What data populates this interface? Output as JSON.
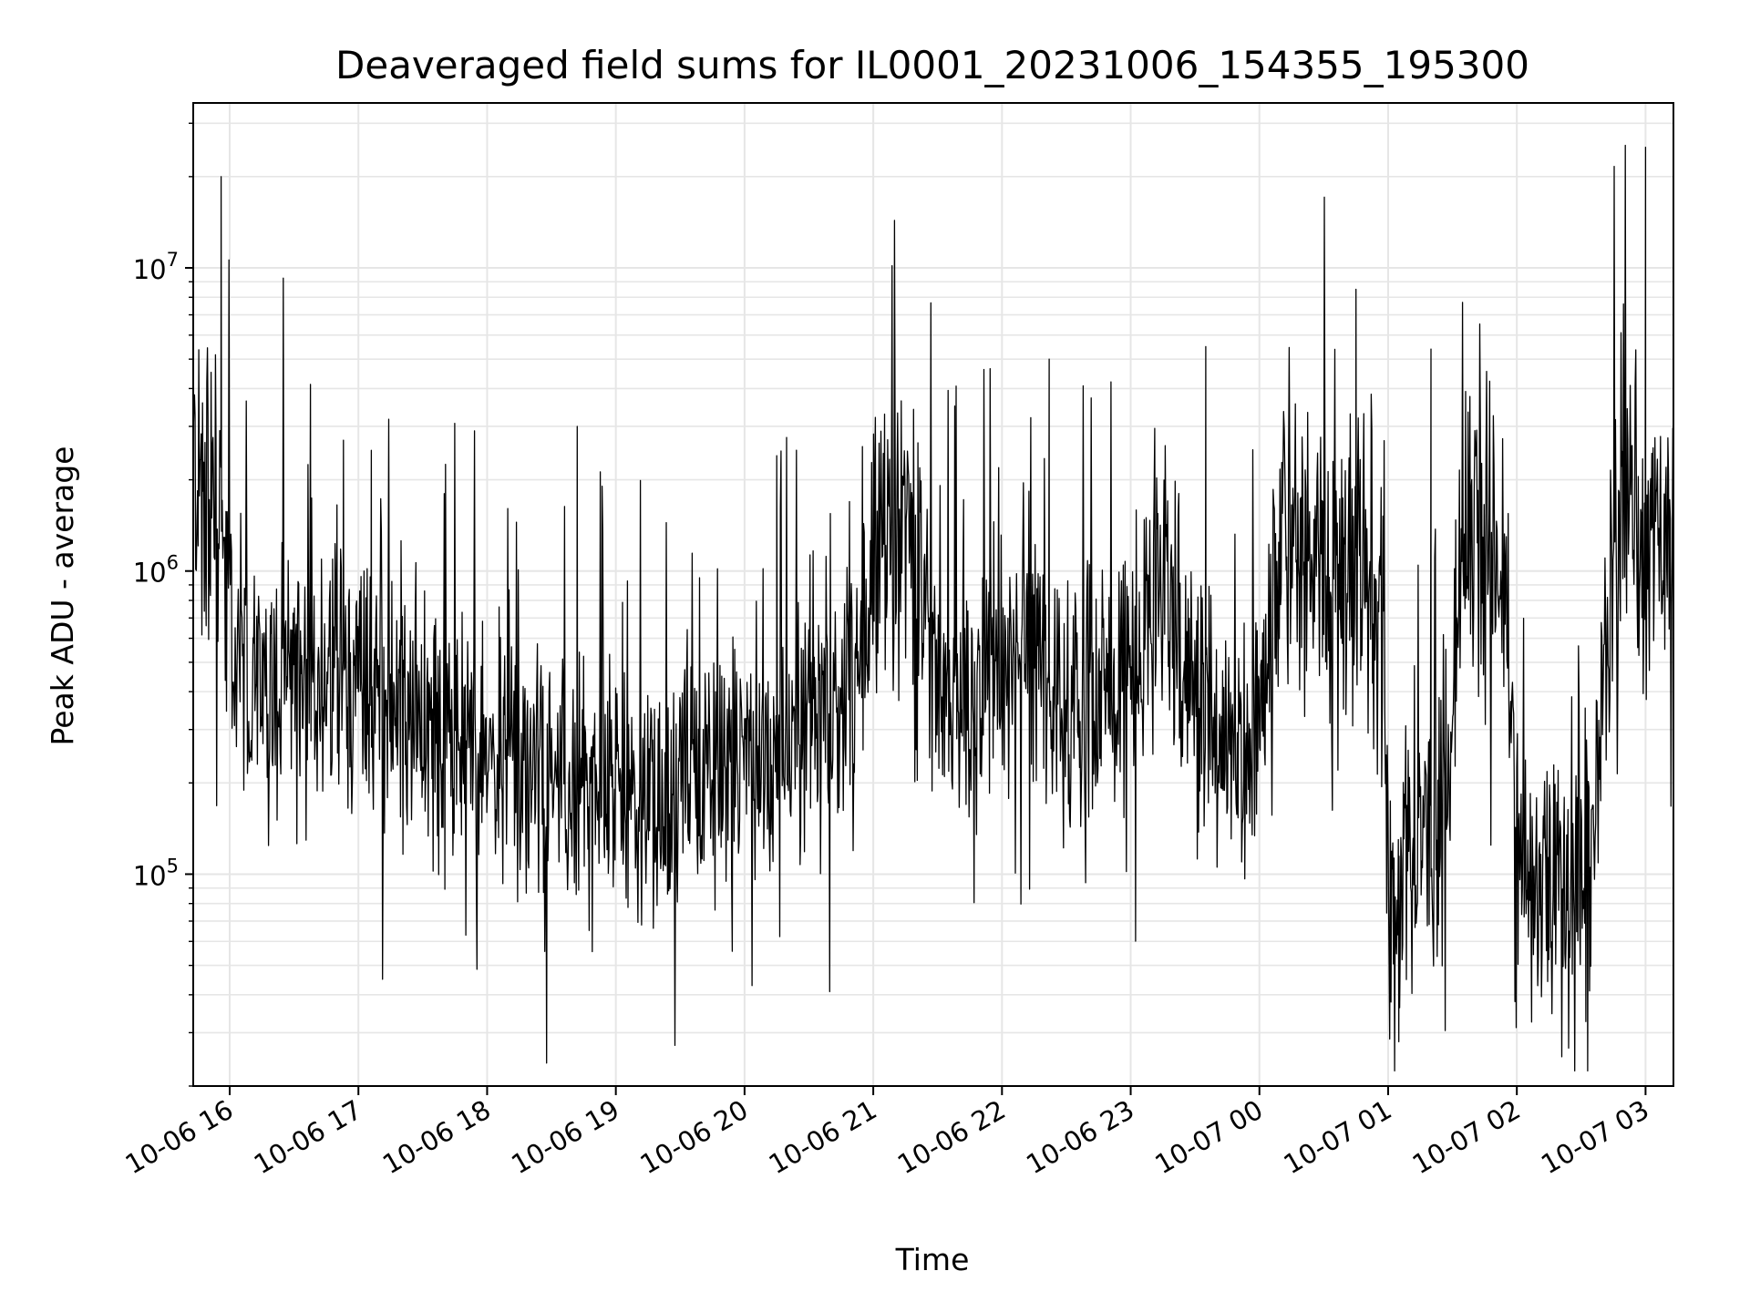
{
  "chart_data": {
    "type": "line",
    "title": "Deaveraged field sums for IL0001_20231006_154355_195300",
    "xlabel": "Time",
    "ylabel": "Peak ADU - average",
    "yscale": "log",
    "ylim": [
      20000,
      35000000
    ],
    "xlim": [
      "2023-10-06 15:43",
      "2023-10-07 03:13"
    ],
    "grid": true,
    "legend": "none",
    "line_color": "#000000",
    "grid_color": "#e6e6e6",
    "x_ticks": [
      "10-06 16",
      "10-06 17",
      "10-06 18",
      "10-06 19",
      "10-06 20",
      "10-06 21",
      "10-06 22",
      "10-06 23",
      "10-07 00",
      "10-07 01",
      "10-07 02",
      "10-07 03"
    ],
    "y_ticks": [
      {
        "base": "10",
        "exp": "5",
        "value": 100000
      },
      {
        "base": "10",
        "exp": "6",
        "value": 1000000
      },
      {
        "base": "10",
        "exp": "7",
        "value": 10000000
      }
    ],
    "series": [
      {
        "x": [
          "2023-10-06 15:43",
          "2023-10-06 15:50",
          "2023-10-06 15:55",
          "2023-10-06 15:58",
          "2023-10-06 16:00",
          "2023-10-06 16:05",
          "2023-10-06 16:15",
          "2023-10-06 16:30",
          "2023-10-06 16:45",
          "2023-10-06 17:00",
          "2023-10-06 17:20",
          "2023-10-06 17:40",
          "2023-10-06 18:00",
          "2023-10-06 18:30",
          "2023-10-06 19:00",
          "2023-10-06 19:30",
          "2023-10-06 20:00",
          "2023-10-06 20:30",
          "2023-10-06 20:50",
          "2023-10-06 21:00",
          "2023-10-06 21:15",
          "2023-10-06 21:30",
          "2023-10-06 21:45",
          "2023-10-06 22:00",
          "2023-10-06 22:15",
          "2023-10-06 22:30",
          "2023-10-06 22:45",
          "2023-10-06 23:00",
          "2023-10-06 23:15",
          "2023-10-06 23:30",
          "2023-10-06 23:45",
          "2023-10-07 00:00",
          "2023-10-07 00:10",
          "2023-10-07 00:20",
          "2023-10-07 00:35",
          "2023-10-07 00:50",
          "2023-10-07 00:58",
          "2023-10-07 01:00",
          "2023-10-07 01:10",
          "2023-10-07 01:25",
          "2023-10-07 01:35",
          "2023-10-07 01:45",
          "2023-10-07 01:55",
          "2023-10-07 02:00",
          "2023-10-07 02:10",
          "2023-10-07 02:25",
          "2023-10-07 02:35",
          "2023-10-07 02:45",
          "2023-10-07 02:55",
          "2023-10-07 03:00",
          "2023-10-07 03:13"
        ],
        "y": [
          2200000,
          2000000,
          1500000,
          1000000,
          600000,
          450000,
          400000,
          450000,
          420000,
          450000,
          350000,
          280000,
          230000,
          200000,
          190000,
          190000,
          230000,
          320000,
          450000,
          1000000,
          1300000,
          450000,
          350000,
          500000,
          700000,
          250000,
          400000,
          500000,
          1000000,
          450000,
          250000,
          300000,
          1300000,
          1400000,
          700000,
          1200000,
          800000,
          70000,
          120000,
          130000,
          1200000,
          1500000,
          700000,
          100000,
          95000,
          100000,
          100000,
          1500000,
          1600000,
          1200000,
          1200000
        ]
      }
    ],
    "spikes": [
      {
        "x": "2023-10-06 15:56",
        "y": 20000000
      },
      {
        "x": "2023-10-06 16:53",
        "y": 2700000
      },
      {
        "x": "2023-10-06 17:06",
        "y": 2500000
      },
      {
        "x": "2023-10-06 18:42",
        "y": 3000000
      },
      {
        "x": "2023-10-06 20:15",
        "y": 2400000
      },
      {
        "x": "2023-10-06 21:38",
        "y": 3500000
      },
      {
        "x": "2023-10-06 22:22",
        "y": 5000000
      },
      {
        "x": "2023-10-06 23:35",
        "y": 5500000
      },
      {
        "x": "2023-10-07 00:45",
        "y": 8500000
      },
      {
        "x": "2023-10-07 01:20",
        "y": 5400000
      },
      {
        "x": "2023-10-07 03:00",
        "y": 25000000
      },
      {
        "x": "2023-10-07 01:05",
        "y": 28000
      }
    ]
  }
}
